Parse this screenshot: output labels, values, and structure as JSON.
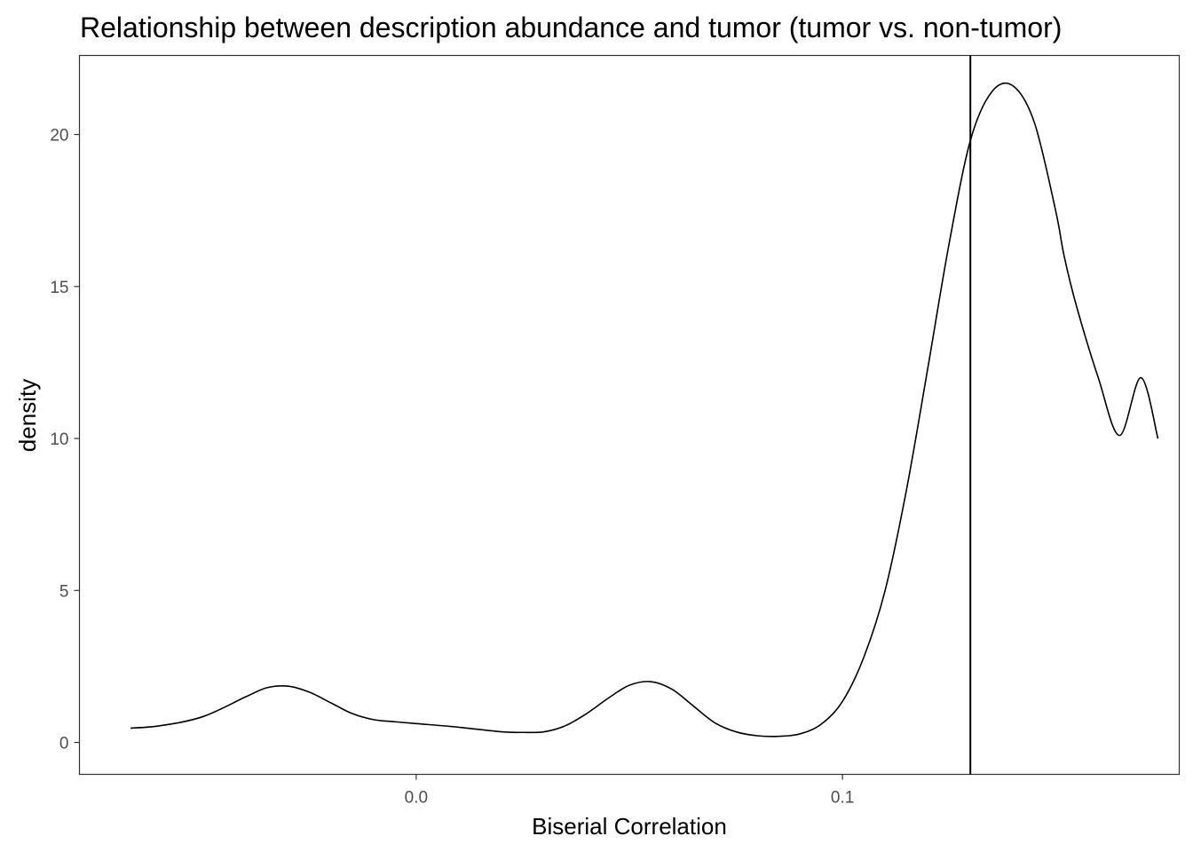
{
  "chart_data": {
    "type": "line",
    "title": "Relationship between description abundance and tumor (tumor vs. non-tumor)",
    "xlabel": "Biserial Correlation",
    "ylabel": "density",
    "xlim": [
      -0.079,
      0.179
    ],
    "ylim": [
      -1.05,
      22.6
    ],
    "xticks": [
      0.0,
      0.1
    ],
    "xtick_labels": [
      "0.0",
      "0.1"
    ],
    "yticks": [
      0,
      5,
      10,
      15,
      20
    ],
    "ytick_labels": [
      "0",
      "5",
      "10",
      "15",
      "20"
    ],
    "grid": false,
    "legend": "none",
    "vline_x": 0.13,
    "series": [
      {
        "x": [
          -0.067,
          -0.06,
          -0.05,
          -0.04,
          -0.035,
          -0.03,
          -0.025,
          -0.02,
          -0.015,
          -0.01,
          -0.005,
          0.0,
          0.01,
          0.02,
          0.025,
          0.03,
          0.035,
          0.04,
          0.045,
          0.05,
          0.055,
          0.06,
          0.065,
          0.07,
          0.075,
          0.08,
          0.085,
          0.09,
          0.095,
          0.1,
          0.105,
          0.11,
          0.115,
          0.12,
          0.125,
          0.13,
          0.135,
          0.14,
          0.145,
          0.15,
          0.152,
          0.155,
          0.16,
          0.165,
          0.17,
          0.174
        ],
        "y": [
          0.47,
          0.55,
          0.85,
          1.5,
          1.8,
          1.85,
          1.65,
          1.3,
          0.95,
          0.75,
          0.68,
          0.62,
          0.5,
          0.35,
          0.33,
          0.35,
          0.55,
          0.95,
          1.45,
          1.88,
          2.0,
          1.75,
          1.2,
          0.65,
          0.35,
          0.22,
          0.2,
          0.28,
          0.6,
          1.35,
          2.8,
          5.0,
          8.3,
          12.3,
          16.4,
          19.8,
          21.4,
          21.6,
          20.4,
          17.5,
          16.0,
          14.3,
          12.0,
          10.1,
          12.0,
          10.0
        ]
      }
    ]
  }
}
